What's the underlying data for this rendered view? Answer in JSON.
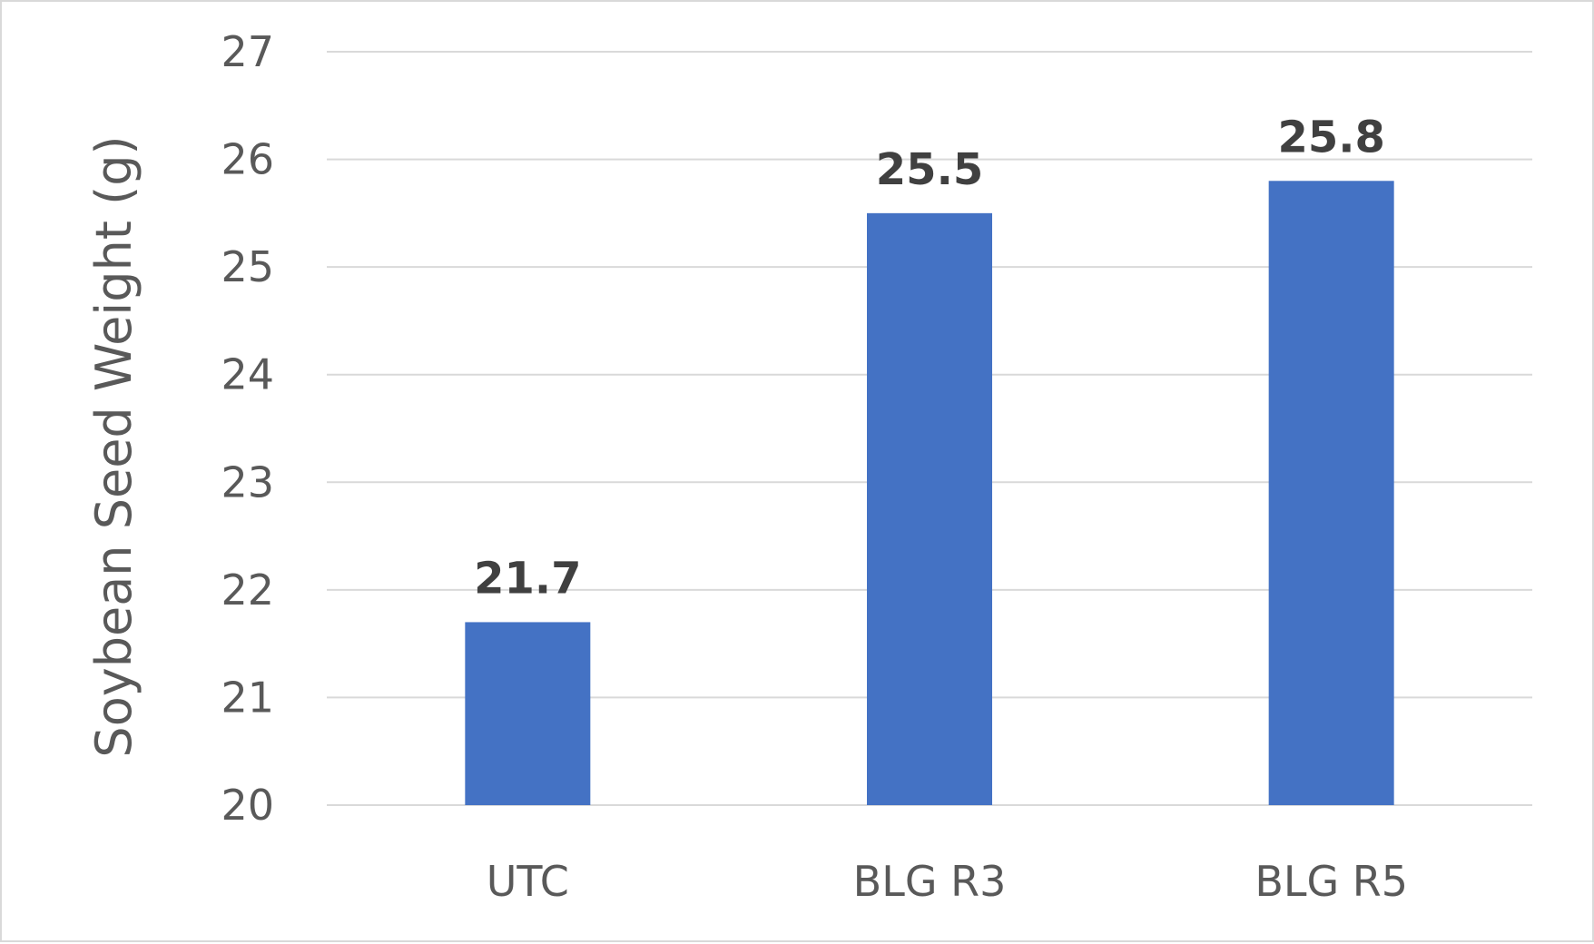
{
  "chart_data": {
    "type": "bar",
    "categories": [
      "UTC",
      "BLG R3",
      "BLG R5"
    ],
    "values": [
      21.7,
      25.5,
      25.8
    ],
    "data_labels": [
      "21.7",
      "25.5",
      "25.8"
    ],
    "ylabel": "Soybean Seed Weight (g)",
    "xlabel": "",
    "ylim": [
      20,
      27
    ],
    "yticks": [
      "20",
      "21",
      "22",
      "23",
      "24",
      "25",
      "26",
      "27"
    ],
    "grid": true,
    "legend": "none",
    "bar_color": "#4472c4",
    "gridline_color": "#d9d9d9"
  }
}
